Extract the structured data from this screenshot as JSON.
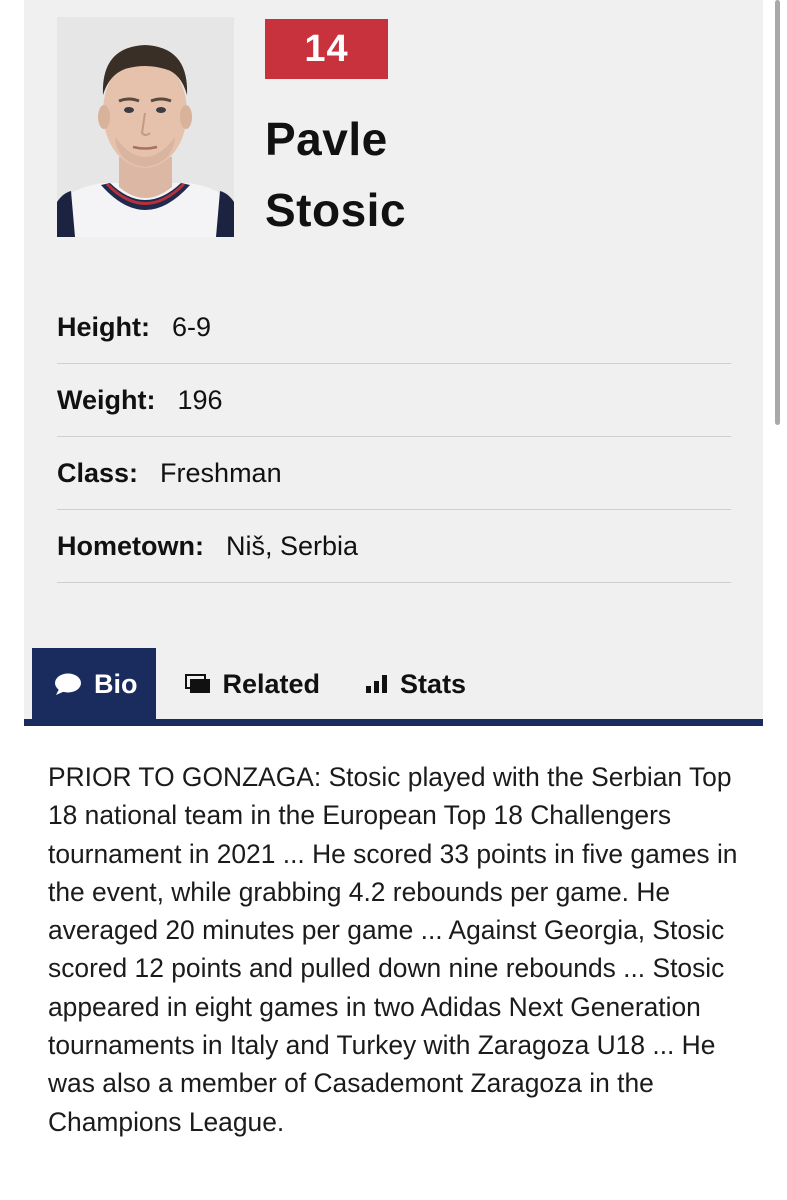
{
  "player": {
    "number": "14",
    "first_name": "Pavle",
    "last_name": "Stosic"
  },
  "info": [
    {
      "label": "Height:",
      "value": "6-9"
    },
    {
      "label": "Weight:",
      "value": "196"
    },
    {
      "label": "Class:",
      "value": "Freshman"
    },
    {
      "label": "Hometown:",
      "value": "Niš, Serbia"
    }
  ],
  "tabs": [
    {
      "label": "Bio",
      "icon": "chat-bubble-icon",
      "active": true
    },
    {
      "label": "Related",
      "icon": "gallery-icon",
      "active": false
    },
    {
      "label": "Stats",
      "icon": "bar-chart-icon",
      "active": false
    }
  ],
  "bio": {
    "text": "PRIOR TO GONZAGA: Stosic played with the Serbian Top 18 national team in the European Top 18 Challengers tournament in 2021 ... He scored 33 points in five games in the event, while grabbing 4.2 rebounds per game. He averaged 20 minutes per game ... Against Georgia, Stosic scored 12 points and pulled down nine rebounds ... Stosic appeared in eight games in two Adidas Next Generation tournaments in Italy and Turkey with Zaragoza U18 ... He was also a member of Casademont Zaragoza in the Champions League."
  },
  "colors": {
    "accent_red": "#c8323c",
    "navy": "#1a2b5e",
    "card_bg": "#f0f0f0"
  }
}
